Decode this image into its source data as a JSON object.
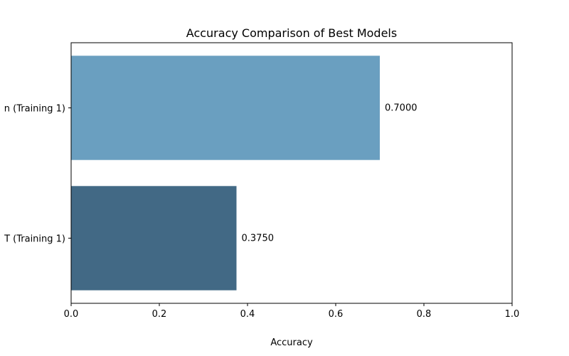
{
  "chart_data": {
    "type": "bar",
    "orientation": "horizontal",
    "title": "Accuracy Comparison of Best Models",
    "xlabel": "Accuracy",
    "ylabel": "",
    "xlim": [
      0,
      1
    ],
    "xticks": [
      0.0,
      0.2,
      0.4,
      0.6,
      0.8,
      1.0
    ],
    "xtick_labels": [
      "0.0",
      "0.2",
      "0.4",
      "0.6",
      "0.8",
      "1.0"
    ],
    "categories": [
      "n (Training 1)",
      "T (Training 1)"
    ],
    "values": [
      0.7,
      0.375
    ],
    "value_labels": [
      "0.7000",
      "0.3750"
    ],
    "colors": [
      "#6a9fc0",
      "#426985"
    ],
    "grid": false,
    "legend": "none"
  }
}
